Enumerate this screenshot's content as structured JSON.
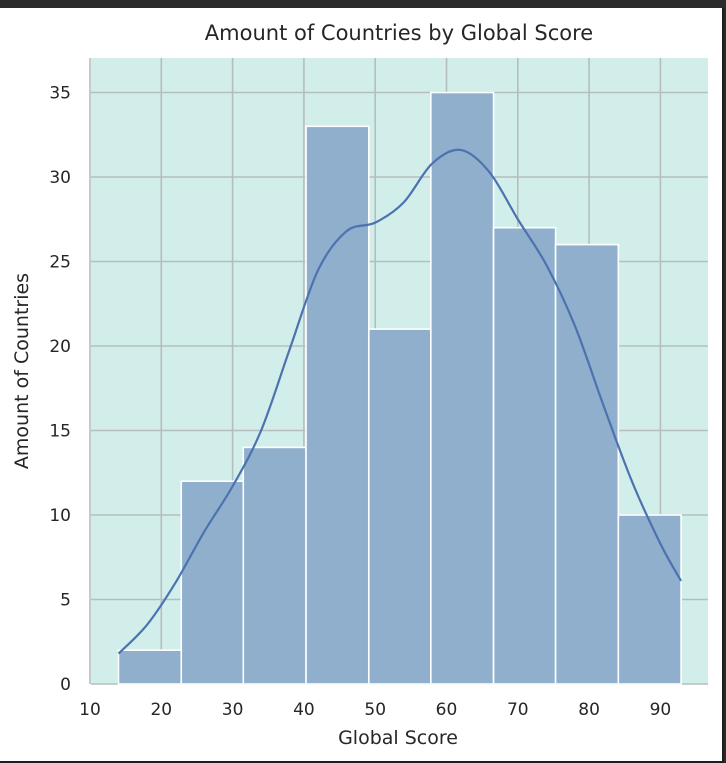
{
  "chart_data": {
    "type": "bar",
    "title": "Amount of Countries by Global Score",
    "xlabel": "Global Score",
    "ylabel": "Amount of Countries",
    "xlim": [
      10,
      97
    ],
    "ylim": [
      0,
      36.5
    ],
    "xticks": [
      10,
      20,
      30,
      40,
      50,
      60,
      70,
      80,
      90
    ],
    "yticks": [
      0,
      5,
      10,
      15,
      20,
      25,
      30,
      35
    ],
    "grid": true,
    "bin_edges": [
      14,
      22.8,
      31.5,
      40.3,
      49.1,
      57.8,
      66.6,
      75.3,
      84.1,
      92.9
    ],
    "values": [
      2,
      12,
      14,
      33,
      21,
      35,
      27,
      26,
      10
    ],
    "kde": {
      "x": [
        14,
        18,
        22,
        26,
        30,
        34,
        38,
        42,
        46,
        50,
        54,
        58,
        62,
        66,
        70,
        74,
        78,
        82,
        86,
        90,
        92.9
      ],
      "y": [
        1.8,
        3.5,
        6.0,
        9.0,
        11.7,
        15.0,
        19.8,
        24.5,
        26.8,
        27.3,
        28.5,
        30.8,
        31.6,
        30.3,
        27.5,
        24.8,
        21.2,
        16.5,
        12.0,
        8.3,
        6.1
      ]
    },
    "colors": {
      "plot_bg": "#d1eeeb",
      "grid": "#b5bebd",
      "bar_fill": "#8fafcc",
      "bar_edge": "#ffffff",
      "kde_line": "#4c72b0"
    }
  }
}
